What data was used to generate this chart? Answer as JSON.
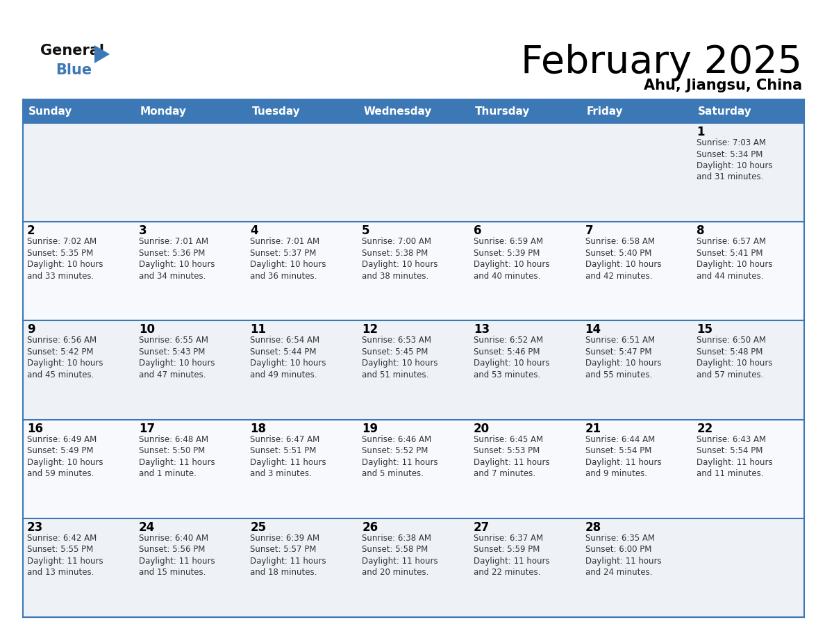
{
  "title": "February 2025",
  "subtitle": "Ahu, Jiangsu, China",
  "header_bg_color": "#3b78b5",
  "header_text_color": "#ffffff",
  "title_color": "#000000",
  "subtitle_color": "#000000",
  "cell_bg_even": "#eef2f7",
  "cell_bg_odd": "#f7f9fc",
  "day_number_color": "#000000",
  "detail_text_color": "#333333",
  "grid_color": "#3b78b5",
  "days_of_week": [
    "Sunday",
    "Monday",
    "Tuesday",
    "Wednesday",
    "Thursday",
    "Friday",
    "Saturday"
  ],
  "calendar_data": [
    [
      null,
      null,
      null,
      null,
      null,
      null,
      {
        "day": "1",
        "sunrise": "7:03 AM",
        "sunset": "5:34 PM",
        "daylight": "10 hours\nand 31 minutes."
      }
    ],
    [
      {
        "day": "2",
        "sunrise": "7:02 AM",
        "sunset": "5:35 PM",
        "daylight": "10 hours\nand 33 minutes."
      },
      {
        "day": "3",
        "sunrise": "7:01 AM",
        "sunset": "5:36 PM",
        "daylight": "10 hours\nand 34 minutes."
      },
      {
        "day": "4",
        "sunrise": "7:01 AM",
        "sunset": "5:37 PM",
        "daylight": "10 hours\nand 36 minutes."
      },
      {
        "day": "5",
        "sunrise": "7:00 AM",
        "sunset": "5:38 PM",
        "daylight": "10 hours\nand 38 minutes."
      },
      {
        "day": "6",
        "sunrise": "6:59 AM",
        "sunset": "5:39 PM",
        "daylight": "10 hours\nand 40 minutes."
      },
      {
        "day": "7",
        "sunrise": "6:58 AM",
        "sunset": "5:40 PM",
        "daylight": "10 hours\nand 42 minutes."
      },
      {
        "day": "8",
        "sunrise": "6:57 AM",
        "sunset": "5:41 PM",
        "daylight": "10 hours\nand 44 minutes."
      }
    ],
    [
      {
        "day": "9",
        "sunrise": "6:56 AM",
        "sunset": "5:42 PM",
        "daylight": "10 hours\nand 45 minutes."
      },
      {
        "day": "10",
        "sunrise": "6:55 AM",
        "sunset": "5:43 PM",
        "daylight": "10 hours\nand 47 minutes."
      },
      {
        "day": "11",
        "sunrise": "6:54 AM",
        "sunset": "5:44 PM",
        "daylight": "10 hours\nand 49 minutes."
      },
      {
        "day": "12",
        "sunrise": "6:53 AM",
        "sunset": "5:45 PM",
        "daylight": "10 hours\nand 51 minutes."
      },
      {
        "day": "13",
        "sunrise": "6:52 AM",
        "sunset": "5:46 PM",
        "daylight": "10 hours\nand 53 minutes."
      },
      {
        "day": "14",
        "sunrise": "6:51 AM",
        "sunset": "5:47 PM",
        "daylight": "10 hours\nand 55 minutes."
      },
      {
        "day": "15",
        "sunrise": "6:50 AM",
        "sunset": "5:48 PM",
        "daylight": "10 hours\nand 57 minutes."
      }
    ],
    [
      {
        "day": "16",
        "sunrise": "6:49 AM",
        "sunset": "5:49 PM",
        "daylight": "10 hours\nand 59 minutes."
      },
      {
        "day": "17",
        "sunrise": "6:48 AM",
        "sunset": "5:50 PM",
        "daylight": "11 hours\nand 1 minute."
      },
      {
        "day": "18",
        "sunrise": "6:47 AM",
        "sunset": "5:51 PM",
        "daylight": "11 hours\nand 3 minutes."
      },
      {
        "day": "19",
        "sunrise": "6:46 AM",
        "sunset": "5:52 PM",
        "daylight": "11 hours\nand 5 minutes."
      },
      {
        "day": "20",
        "sunrise": "6:45 AM",
        "sunset": "5:53 PM",
        "daylight": "11 hours\nand 7 minutes."
      },
      {
        "day": "21",
        "sunrise": "6:44 AM",
        "sunset": "5:54 PM",
        "daylight": "11 hours\nand 9 minutes."
      },
      {
        "day": "22",
        "sunrise": "6:43 AM",
        "sunset": "5:54 PM",
        "daylight": "11 hours\nand 11 minutes."
      }
    ],
    [
      {
        "day": "23",
        "sunrise": "6:42 AM",
        "sunset": "5:55 PM",
        "daylight": "11 hours\nand 13 minutes."
      },
      {
        "day": "24",
        "sunrise": "6:40 AM",
        "sunset": "5:56 PM",
        "daylight": "11 hours\nand 15 minutes."
      },
      {
        "day": "25",
        "sunrise": "6:39 AM",
        "sunset": "5:57 PM",
        "daylight": "11 hours\nand 18 minutes."
      },
      {
        "day": "26",
        "sunrise": "6:38 AM",
        "sunset": "5:58 PM",
        "daylight": "11 hours\nand 20 minutes."
      },
      {
        "day": "27",
        "sunrise": "6:37 AM",
        "sunset": "5:59 PM",
        "daylight": "11 hours\nand 22 minutes."
      },
      {
        "day": "28",
        "sunrise": "6:35 AM",
        "sunset": "6:00 PM",
        "daylight": "11 hours\nand 24 minutes."
      },
      null
    ]
  ]
}
